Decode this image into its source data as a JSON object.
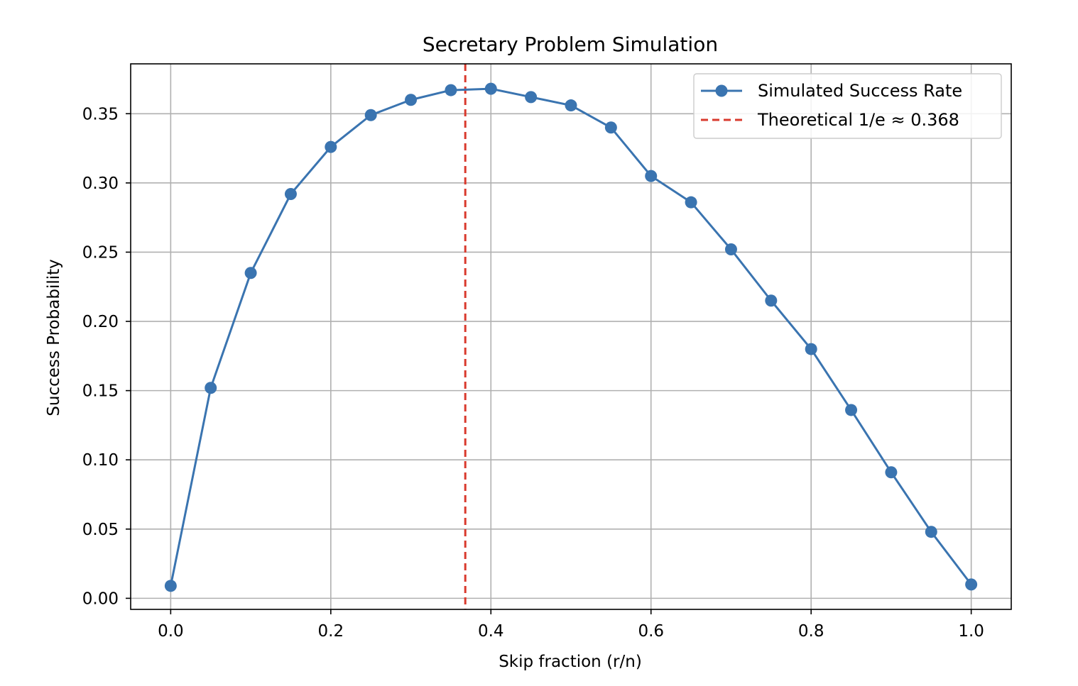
{
  "chart_data": {
    "type": "line",
    "title": "Secretary Problem Simulation",
    "xlabel": "Skip fraction (r/n)",
    "ylabel": "Success Probability",
    "xlim": [
      -0.05,
      1.05
    ],
    "ylim": [
      -0.008,
      0.386
    ],
    "x_ticks": [
      0.0,
      0.2,
      0.4,
      0.6,
      0.8,
      1.0
    ],
    "x_tick_labels": [
      "0.0",
      "0.2",
      "0.4",
      "0.6",
      "0.8",
      "1.0"
    ],
    "y_ticks": [
      0.0,
      0.05,
      0.1,
      0.15,
      0.2,
      0.25,
      0.3,
      0.35
    ],
    "y_tick_labels": [
      "0.00",
      "0.05",
      "0.10",
      "0.15",
      "0.20",
      "0.25",
      "0.30",
      "0.35"
    ],
    "grid": true,
    "legend_position": "top-right",
    "series": [
      {
        "name": "Simulated Success Rate",
        "color": "#3a74b0",
        "marker": "circle",
        "x": [
          0.0,
          0.05,
          0.1,
          0.15,
          0.2,
          0.25,
          0.3,
          0.35,
          0.4,
          0.45,
          0.5,
          0.55,
          0.6,
          0.65,
          0.7,
          0.75,
          0.8,
          0.85,
          0.9,
          0.95,
          1.0
        ],
        "y": [
          0.009,
          0.152,
          0.235,
          0.292,
          0.326,
          0.349,
          0.36,
          0.367,
          0.368,
          0.362,
          0.356,
          0.34,
          0.305,
          0.286,
          0.252,
          0.215,
          0.18,
          0.136,
          0.091,
          0.048,
          0.01
        ]
      }
    ],
    "reference_lines": [
      {
        "name": "Theoretical 1/e ≈ 0.368",
        "orientation": "vertical",
        "x": 0.368,
        "color": "#d93a2e",
        "style": "dashed"
      }
    ]
  }
}
